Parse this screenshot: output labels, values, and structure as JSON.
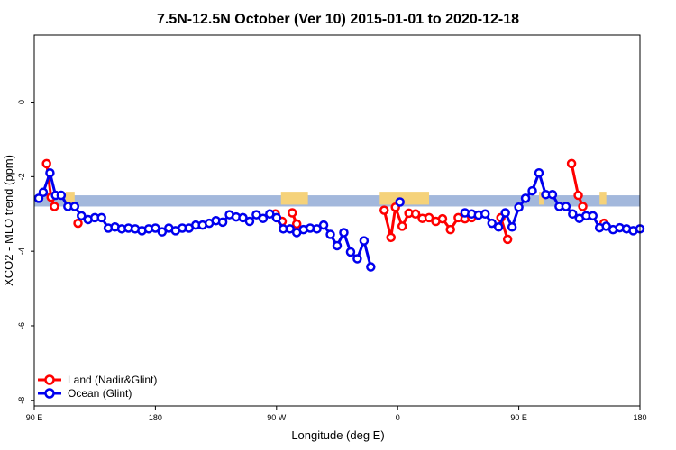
{
  "chart_data": {
    "type": "line",
    "title": "7.5N-12.5N October (Ver 10)   2015-01-01 to 2020-12-18",
    "xlabel": "Longitude (deg E)",
    "ylabel": "XCO2 - MLO trend (ppm)",
    "xlim": [
      -90,
      180
    ],
    "ylim": [
      -8.15,
      1.8
    ],
    "x_ticks": [
      {
        "value": -90,
        "label": "90 E"
      },
      {
        "value": -36,
        "label": "180"
      },
      {
        "value": 18,
        "label": "90 W"
      },
      {
        "value": 72,
        "label": "0"
      },
      {
        "value": 126,
        "label": "90 E"
      },
      {
        "value": 180,
        "label": "180"
      }
    ],
    "y_ticks": [
      0,
      -2,
      -4,
      -6,
      -8
    ],
    "legend_position": "bottom-left",
    "land_band": {
      "color": "#f5d27a",
      "y_range": [
        -2.75,
        -2.55
      ],
      "segments": [
        [
          -76,
          -72
        ],
        [
          20,
          32
        ],
        [
          64,
          86
        ],
        [
          135,
          137
        ],
        [
          162,
          165
        ]
      ]
    },
    "ocean_band": {
      "color": "#a3b8dc",
      "y_range": [
        -2.8,
        -2.5
      ]
    },
    "series": [
      {
        "name": "Land (Nadir&Glint)",
        "color": "#ff0000",
        "segments": [
          {
            "x": [
              -84.5,
              -82.5,
              -81.0
            ],
            "y": [
              -1.65,
              -2.55,
              -2.8
            ]
          },
          {
            "x": [
              -70.5
            ],
            "y": [
              -3.25
            ]
          },
          {
            "x": [
              17.5,
              20.5
            ],
            "y": [
              -3.0,
              -3.2
            ]
          },
          {
            "x": [
              25.0,
              27.0
            ],
            "y": [
              -2.97,
              -3.27
            ]
          },
          {
            "x": [
              66.0,
              69.0,
              71.0,
              74.0,
              77.0,
              80.0,
              83.0,
              86.0,
              89.0,
              92.0,
              95.5,
              99.0,
              102.0,
              105.0
            ],
            "y": [
              -2.9,
              -3.63,
              -2.82,
              -3.33,
              -2.98,
              -3.0,
              -3.12,
              -3.1,
              -3.2,
              -3.13,
              -3.42,
              -3.1,
              -3.13,
              -3.1
            ]
          },
          {
            "x": [
              118.0,
              121.0
            ],
            "y": [
              -3.1,
              -3.68
            ]
          },
          {
            "x": [
              149.5,
              152.5,
              154.5
            ],
            "y": [
              -1.65,
              -2.5,
              -2.8
            ]
          },
          {
            "x": [
              164.0
            ],
            "y": [
              -3.25
            ]
          }
        ]
      },
      {
        "name": "Ocean (Glint)",
        "color": "#0000ee",
        "x": [
          -88.0,
          -86.0,
          -83.0,
          -80.5,
          -78.0,
          -75.0,
          -72.0,
          -69.0,
          -66.0,
          -63.0,
          -60.0,
          -57.0,
          -54.0,
          -51.0,
          -48.0,
          -45.0,
          -42.0,
          -39.0,
          -36.0,
          -33.0,
          -30.0,
          -27.0,
          -24.0,
          -21.0,
          -18.0,
          -15.0,
          -12.0,
          -9.0,
          -6.0,
          -3.0,
          0.0,
          3.0,
          6.0,
          9.0,
          12.0,
          15.0,
          18.0,
          21.0,
          24.0,
          27.0,
          30.0,
          33.0,
          36.0,
          39.0,
          42.0,
          45.0,
          48.0,
          51.0,
          54.0,
          57.0,
          60.0,
          63.0
        ],
        "y": [
          -2.58,
          -2.42,
          -1.9,
          -2.5,
          -2.5,
          -2.8,
          -2.8,
          -3.05,
          -3.15,
          -3.1,
          -3.1,
          -3.38,
          -3.35,
          -3.4,
          -3.38,
          -3.4,
          -3.45,
          -3.4,
          -3.38,
          -3.48,
          -3.38,
          -3.45,
          -3.38,
          -3.38,
          -3.3,
          -3.3,
          -3.25,
          -3.18,
          -3.22,
          -3.02,
          -3.08,
          -3.1,
          -3.2,
          -3.02,
          -3.12,
          -3.0,
          -3.1,
          -3.4,
          -3.4,
          -3.5,
          -3.42,
          -3.38,
          -3.4,
          -3.3,
          -3.55,
          -3.85,
          -3.5,
          -4.02,
          -4.2,
          -3.72,
          -4.42,
          null
        ],
        "segments": [
          {
            "x": [
              -88.0,
              -86.0,
              -83.0,
              -80.5,
              -78.0,
              -75.0,
              -72.0,
              -69.0,
              -66.0,
              -63.0,
              -60.0,
              -57.0,
              -54.0,
              -51.0,
              -48.0,
              -45.0,
              -42.0,
              -39.0,
              -36.0,
              -33.0,
              -30.0,
              -27.0,
              -24.0,
              -21.0,
              -18.0,
              -15.0,
              -12.0,
              -9.0,
              -6.0,
              -3.0,
              0.0,
              3.0,
              6.0,
              9.0,
              12.0,
              15.0,
              18.0,
              21.0,
              24.0,
              27.0,
              30.0,
              33.0,
              36.0,
              39.0,
              42.0,
              45.0,
              48.0,
              51.0,
              54.0,
              57.0,
              60.0
            ],
            "y": [
              -2.58,
              -2.42,
              -1.9,
              -2.5,
              -2.5,
              -2.8,
              -2.8,
              -3.05,
              -3.15,
              -3.1,
              -3.1,
              -3.38,
              -3.35,
              -3.4,
              -3.38,
              -3.4,
              -3.45,
              -3.4,
              -3.38,
              -3.48,
              -3.38,
              -3.45,
              -3.38,
              -3.38,
              -3.3,
              -3.3,
              -3.25,
              -3.18,
              -3.22,
              -3.02,
              -3.08,
              -3.1,
              -3.2,
              -3.02,
              -3.12,
              -3.0,
              -3.1,
              -3.4,
              -3.4,
              -3.5,
              -3.42,
              -3.38,
              -3.4,
              -3.3,
              -3.55,
              -3.85,
              -3.5,
              -4.02,
              -4.2,
              -3.72,
              -4.42
            ]
          },
          {
            "x": [
              73.0
            ],
            "y": [
              -2.68
            ]
          },
          {
            "x": [
              102.0,
              105.0,
              108.0,
              111.0,
              114.0,
              117.0,
              120.0,
              123.0,
              126.0,
              129.0,
              132.0,
              135.0,
              138.0,
              141.0,
              144.0,
              147.0,
              150.0,
              153.0,
              156.0,
              159.0,
              162.0,
              165.0,
              168.0,
              171.0,
              174.0,
              177.0,
              180.0
            ],
            "y": [
              -2.97,
              -3.0,
              -3.03,
              -3.0,
              -3.25,
              -3.35,
              -2.97,
              -3.35,
              -2.82,
              -2.58,
              -2.38,
              -1.9,
              -2.48,
              -2.48,
              -2.8,
              -2.8,
              -3.0,
              -3.12,
              -3.05,
              -3.05,
              -3.37,
              -3.33,
              -3.42,
              -3.37,
              -3.4,
              -3.45,
              -3.4
            ]
          }
        ]
      }
    ]
  }
}
